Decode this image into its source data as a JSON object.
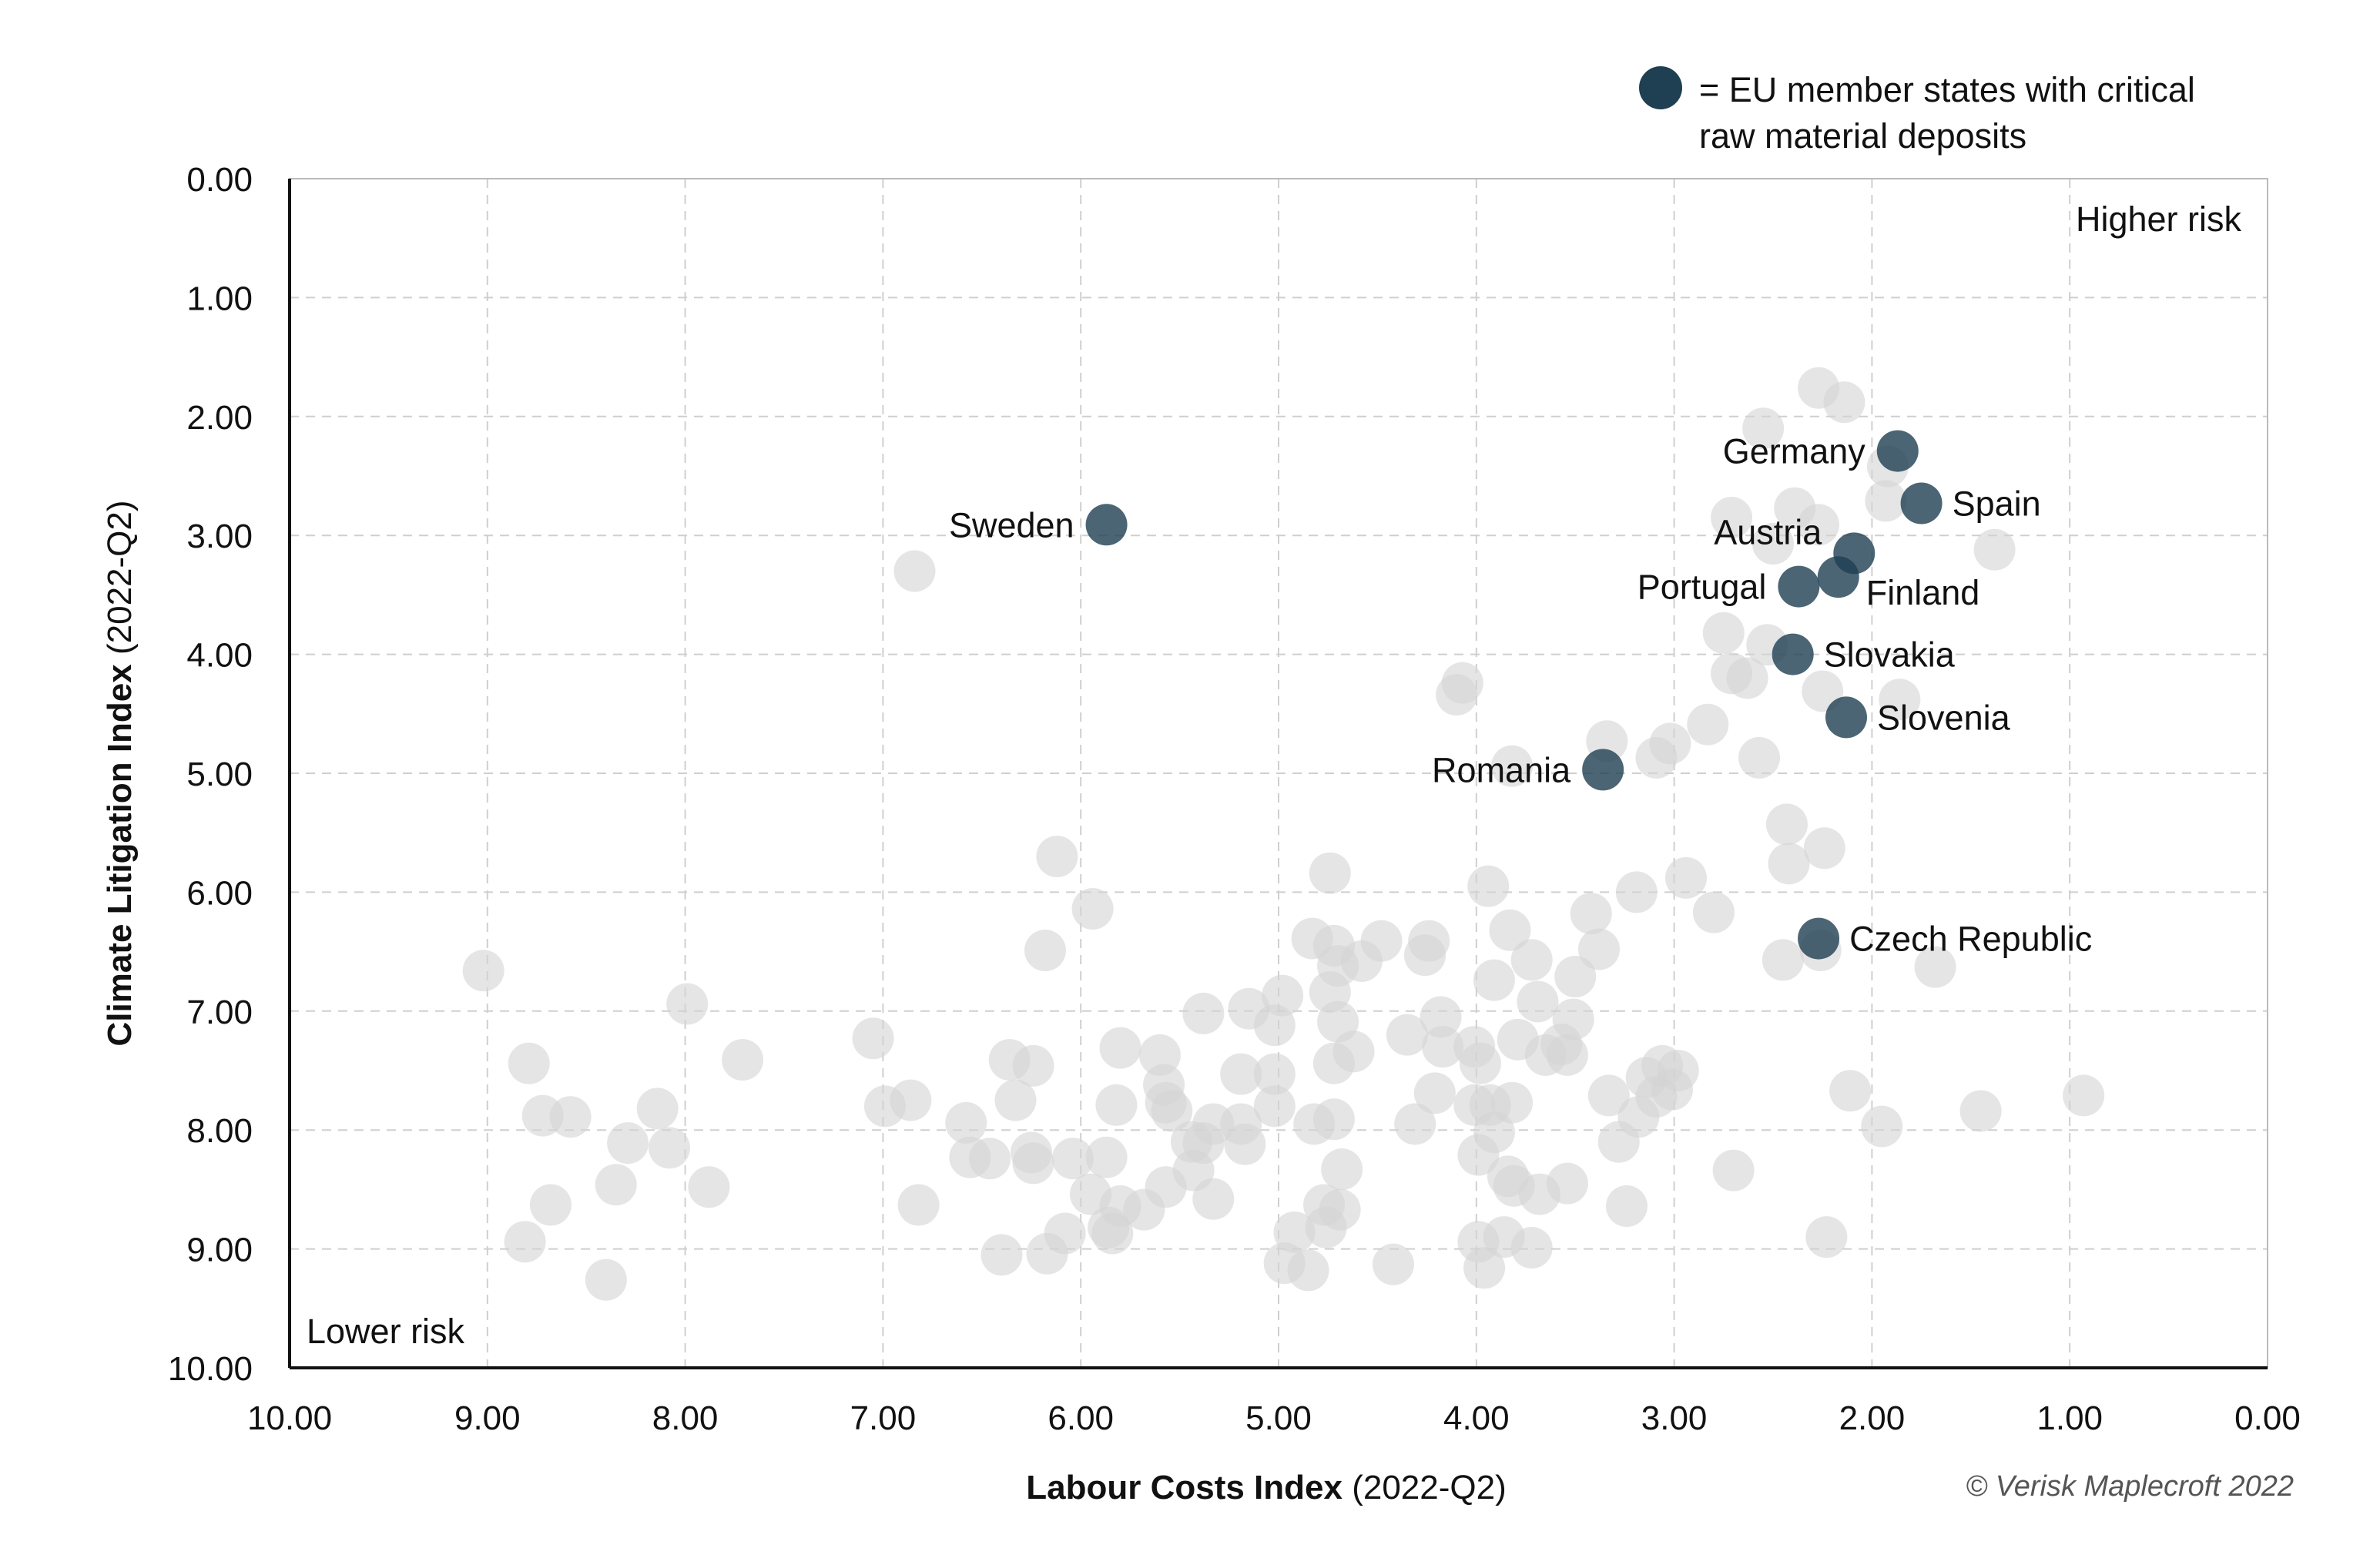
{
  "chart_data": {
    "type": "scatter",
    "legend": {
      "label_line1": "= EU member states with critical",
      "label_line2": "raw material deposits",
      "placement": "top-right",
      "color": "#1f3f52"
    },
    "xlabel_bold": "Labour Costs Index",
    "xlabel_rest": " (2022-Q2)",
    "ylabel_bold": "Climate Litigation Index",
    "ylabel_rest": " (2022-Q2)",
    "xlim": [
      10,
      0
    ],
    "ylim": [
      0,
      10
    ],
    "x_reversed": true,
    "y_reversed": true,
    "grid": true,
    "xticks": [
      "10.00",
      "9.00",
      "8.00",
      "7.00",
      "6.00",
      "5.00",
      "4.00",
      "3.00",
      "2.00",
      "1.00",
      "0.00"
    ],
    "yticks": [
      "0.00",
      "1.00",
      "2.00",
      "3.00",
      "4.00",
      "5.00",
      "6.00",
      "7.00",
      "8.00",
      "9.00",
      "10.00"
    ],
    "annotations": {
      "top_right": "Higher risk",
      "bottom_left": "Lower risk"
    },
    "credit": "© Verisk Maplecroft 2022",
    "colors": {
      "highlight": "#1f3f52",
      "other": "#d4d4d4"
    },
    "highlighted": [
      {
        "name": "Sweden",
        "x": 5.87,
        "y": 2.91,
        "label_side": "left"
      },
      {
        "name": "Germany",
        "x": 1.87,
        "y": 2.29,
        "label_side": "left"
      },
      {
        "name": "Spain",
        "x": 1.75,
        "y": 2.73,
        "label_side": "right"
      },
      {
        "name": "Austria",
        "x": 2.09,
        "y": 3.15,
        "label_side": "left-up"
      },
      {
        "name": "Finland",
        "x": 2.17,
        "y": 3.35,
        "label_side": "right-down"
      },
      {
        "name": "Portugal",
        "x": 2.37,
        "y": 3.43,
        "label_side": "left"
      },
      {
        "name": "Slovakia",
        "x": 2.4,
        "y": 4.0,
        "label_side": "right"
      },
      {
        "name": "Slovenia",
        "x": 2.13,
        "y": 4.53,
        "label_side": "right"
      },
      {
        "name": "Romania",
        "x": 3.36,
        "y": 4.97,
        "label_side": "left"
      },
      {
        "name": "Czech Republic",
        "x": 2.27,
        "y": 6.39,
        "label_side": "right"
      }
    ],
    "others": [
      [
        2.27,
        1.76
      ],
      [
        2.14,
        1.88
      ],
      [
        2.55,
        2.1
      ],
      [
        1.92,
        2.42
      ],
      [
        1.93,
        2.71
      ],
      [
        2.71,
        2.85
      ],
      [
        2.39,
        2.77
      ],
      [
        2.27,
        2.91
      ],
      [
        1.38,
        3.12
      ],
      [
        2.5,
        3.07
      ],
      [
        2.75,
        3.82
      ],
      [
        2.53,
        3.92
      ],
      [
        2.71,
        4.16
      ],
      [
        2.63,
        4.2
      ],
      [
        2.25,
        4.31
      ],
      [
        1.86,
        4.38
      ],
      [
        2.83,
        4.59
      ],
      [
        2.57,
        4.87
      ],
      [
        3.34,
        4.73
      ],
      [
        3.02,
        4.75
      ],
      [
        3.09,
        4.87
      ],
      [
        4.07,
        4.24
      ],
      [
        4.1,
        4.34
      ],
      [
        3.82,
        4.94
      ],
      [
        2.43,
        5.43
      ],
      [
        2.24,
        5.63
      ],
      [
        2.42,
        5.76
      ],
      [
        2.94,
        5.88
      ],
      [
        3.19,
        6.0
      ],
      [
        2.8,
        6.17
      ],
      [
        3.42,
        6.18
      ],
      [
        3.38,
        6.48
      ],
      [
        2.45,
        6.57
      ],
      [
        2.26,
        6.49
      ],
      [
        1.68,
        6.63
      ],
      [
        3.94,
        5.95
      ],
      [
        3.83,
        6.32
      ],
      [
        3.72,
        6.57
      ],
      [
        3.91,
        6.74
      ],
      [
        3.5,
        6.71
      ],
      [
        3.69,
        6.92
      ],
      [
        3.51,
        7.07
      ],
      [
        3.57,
        7.28
      ],
      [
        3.54,
        7.37
      ],
      [
        3.79,
        7.24
      ],
      [
        3.65,
        7.37
      ],
      [
        4.74,
        5.84
      ],
      [
        4.83,
        6.39
      ],
      [
        4.72,
        6.45
      ],
      [
        4.7,
        6.62
      ],
      [
        4.58,
        6.58
      ],
      [
        4.48,
        6.41
      ],
      [
        4.24,
        6.41
      ],
      [
        4.26,
        6.53
      ],
      [
        4.74,
        6.84
      ],
      [
        4.7,
        7.09
      ],
      [
        4.62,
        7.34
      ],
      [
        4.72,
        7.44
      ],
      [
        4.35,
        7.2
      ],
      [
        4.18,
        7.05
      ],
      [
        4.17,
        7.3
      ],
      [
        4.01,
        7.3
      ],
      [
        3.98,
        7.44
      ],
      [
        4.21,
        7.69
      ],
      [
        4.01,
        7.79
      ],
      [
        3.93,
        7.79
      ],
      [
        3.82,
        7.77
      ],
      [
        3.91,
        8.02
      ],
      [
        4.31,
        7.95
      ],
      [
        3.99,
        8.21
      ],
      [
        3.84,
        8.39
      ],
      [
        3.81,
        8.47
      ],
      [
        3.68,
        8.54
      ],
      [
        3.54,
        8.45
      ],
      [
        3.86,
        8.9
      ],
      [
        3.99,
        8.94
      ],
      [
        3.96,
        9.16
      ],
      [
        3.72,
        8.99
      ],
      [
        4.42,
        9.13
      ],
      [
        3.33,
        7.71
      ],
      [
        3.28,
        8.1
      ],
      [
        3.24,
        8.64
      ],
      [
        3.18,
        7.89
      ],
      [
        3.14,
        7.56
      ],
      [
        3.09,
        7.72
      ],
      [
        3.06,
        7.46
      ],
      [
        3.01,
        7.66
      ],
      [
        2.98,
        7.5
      ],
      [
        2.7,
        8.34
      ],
      [
        2.11,
        7.67
      ],
      [
        1.95,
        7.97
      ],
      [
        1.45,
        7.84
      ],
      [
        0.93,
        7.71
      ],
      [
        2.23,
        8.9
      ],
      [
        5.38,
        7.02
      ],
      [
        5.15,
        6.98
      ],
      [
        5.02,
        7.12
      ],
      [
        4.98,
        6.87
      ],
      [
        5.6,
        7.37
      ],
      [
        5.58,
        7.62
      ],
      [
        5.57,
        7.77
      ],
      [
        5.54,
        7.84
      ],
      [
        5.82,
        7.79
      ],
      [
        5.8,
        7.31
      ],
      [
        5.19,
        7.53
      ],
      [
        5.02,
        7.53
      ],
      [
        5.02,
        7.8
      ],
      [
        5.19,
        7.95
      ],
      [
        5.17,
        8.12
      ],
      [
        5.33,
        7.95
      ],
      [
        5.44,
        8.1
      ],
      [
        5.38,
        8.11
      ],
      [
        5.43,
        8.34
      ],
      [
        5.57,
        8.48
      ],
      [
        5.33,
        8.58
      ],
      [
        5.8,
        8.64
      ],
      [
        5.68,
        8.67
      ],
      [
        5.86,
        8.82
      ],
      [
        5.84,
        8.87
      ],
      [
        5.95,
        8.54
      ],
      [
        5.87,
        8.23
      ],
      [
        6.04,
        8.24
      ],
      [
        6.08,
        8.87
      ],
      [
        6.17,
        9.04
      ],
      [
        6.4,
        9.05
      ],
      [
        6.24,
        8.28
      ],
      [
        6.25,
        8.19
      ],
      [
        6.46,
        8.24
      ],
      [
        6.56,
        8.23
      ],
      [
        6.58,
        7.94
      ],
      [
        6.33,
        7.75
      ],
      [
        6.24,
        7.46
      ],
      [
        6.36,
        7.41
      ],
      [
        6.12,
        5.7
      ],
      [
        5.94,
        6.14
      ],
      [
        6.18,
        6.49
      ],
      [
        6.84,
        3.3
      ],
      [
        7.05,
        7.23
      ],
      [
        6.99,
        7.8
      ],
      [
        6.86,
        7.75
      ],
      [
        6.82,
        8.63
      ],
      [
        7.71,
        7.41
      ],
      [
        7.99,
        6.94
      ],
      [
        8.14,
        7.82
      ],
      [
        8.29,
        8.11
      ],
      [
        8.08,
        8.15
      ],
      [
        7.88,
        8.48
      ],
      [
        8.35,
        8.46
      ],
      [
        8.4,
        9.26
      ],
      [
        8.68,
        8.63
      ],
      [
        8.58,
        7.89
      ],
      [
        8.72,
        7.88
      ],
      [
        8.79,
        7.44
      ],
      [
        9.02,
        6.66
      ],
      [
        8.81,
        8.94
      ],
      [
        4.92,
        8.86
      ],
      [
        4.97,
        9.12
      ],
      [
        4.85,
        9.18
      ],
      [
        4.77,
        8.63
      ],
      [
        4.69,
        8.67
      ],
      [
        4.76,
        8.82
      ],
      [
        4.68,
        8.33
      ],
      [
        4.72,
        7.91
      ],
      [
        4.82,
        7.95
      ]
    ]
  }
}
